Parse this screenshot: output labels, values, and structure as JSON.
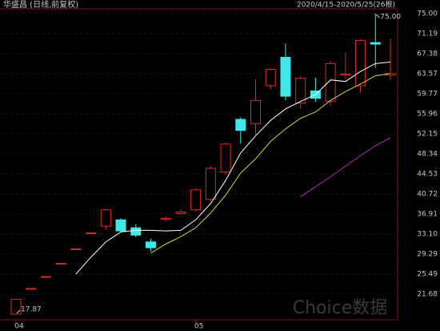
{
  "chart_data": {
    "type": "candlestick",
    "title": "华盛昌 (日线,前复权)",
    "subtitle": "2020/4/15-2020/5/25(26根)",
    "watermark": "Choice数据",
    "categories": [
      "04",
      null,
      null,
      null,
      null,
      null,
      null,
      null,
      null,
      null,
      null,
      null,
      "05",
      null,
      null,
      null,
      null,
      null,
      null,
      null,
      null,
      null,
      null,
      null,
      null,
      null
    ],
    "open": [
      17.87,
      22.75,
      25.03,
      27.53,
      30.28,
      33.31,
      34.6,
      35.8,
      34.3,
      31.6,
      35.9,
      37.0,
      37.7,
      39.7,
      44.9,
      54.9,
      54.1,
      61.3,
      66.7,
      58.0,
      60.3,
      58.3,
      63.3,
      61.3,
      69.5,
      63.3
    ],
    "high": [
      20.68,
      22.75,
      25.03,
      27.53,
      30.28,
      33.31,
      37.9,
      36.1,
      35.0,
      32.2,
      36.4,
      37.8,
      41.8,
      46.0,
      50.5,
      55.3,
      62.5,
      64.6,
      69.3,
      63.2,
      62.8,
      66.0,
      67.6,
      70.2,
      75.0,
      70.2
    ],
    "low": [
      17.87,
      22.75,
      25.03,
      27.53,
      30.28,
      33.31,
      33.9,
      33.4,
      32.5,
      29.8,
      35.5,
      36.8,
      37.3,
      39.2,
      44.3,
      50.3,
      52.0,
      60.6,
      58.5,
      56.9,
      58.2,
      57.5,
      62.5,
      60.0,
      64.7,
      62.4
    ],
    "close": [
      20.68,
      22.75,
      25.03,
      27.53,
      30.28,
      33.31,
      37.7,
      33.7,
      32.9,
      30.5,
      36.1,
      37.3,
      41.5,
      45.6,
      50.2,
      52.8,
      58.5,
      64.4,
      59.3,
      62.7,
      58.9,
      65.5,
      63.5,
      69.9,
      69.2,
      63.6
    ],
    "up_color": "#e02828",
    "down_color": "#3ee8e8",
    "series": [
      {
        "color": "#ffffff",
        "values": [
          null,
          null,
          null,
          null,
          25.5,
          28.7,
          31.6,
          33.5,
          33.8,
          33.8,
          33.7,
          33.8,
          35.8,
          38.9,
          43.3,
          48.5,
          51.8,
          54.7,
          56.9,
          58.3,
          59.6,
          62.4,
          62.1,
          64.0,
          65.5,
          65.8
        ]
      },
      {
        "color": "#d8d830",
        "values": [
          null,
          null,
          null,
          null,
          null,
          null,
          null,
          null,
          null,
          29.5,
          31.2,
          32.6,
          34.3,
          37.1,
          40.5,
          44.7,
          47.4,
          50.7,
          53.1,
          55.1,
          56.3,
          58.5,
          60.2,
          61.6,
          63.2,
          63.6
        ]
      },
      {
        "color": "#c020c0",
        "values": [
          null,
          null,
          null,
          null,
          null,
          null,
          null,
          null,
          null,
          null,
          null,
          null,
          null,
          null,
          null,
          null,
          null,
          null,
          null,
          40.2,
          42.1,
          44.0,
          46.0,
          48.0,
          49.9,
          51.4
        ]
      }
    ],
    "high_label": "75.00",
    "low_label": "17.87",
    "ylim": [
      17.87,
      75
    ],
    "yticks": [
      {
        "value": 75,
        "label": "75.00"
      },
      71.19,
      67.38,
      63.57,
      59.77,
      55.96,
      52.15,
      48.34,
      44.53,
      40.72,
      36.91,
      {
        "value": 33.1,
        "label": "33.10"
      },
      29.29,
      25.49,
      21.68
    ],
    "grid": true
  }
}
